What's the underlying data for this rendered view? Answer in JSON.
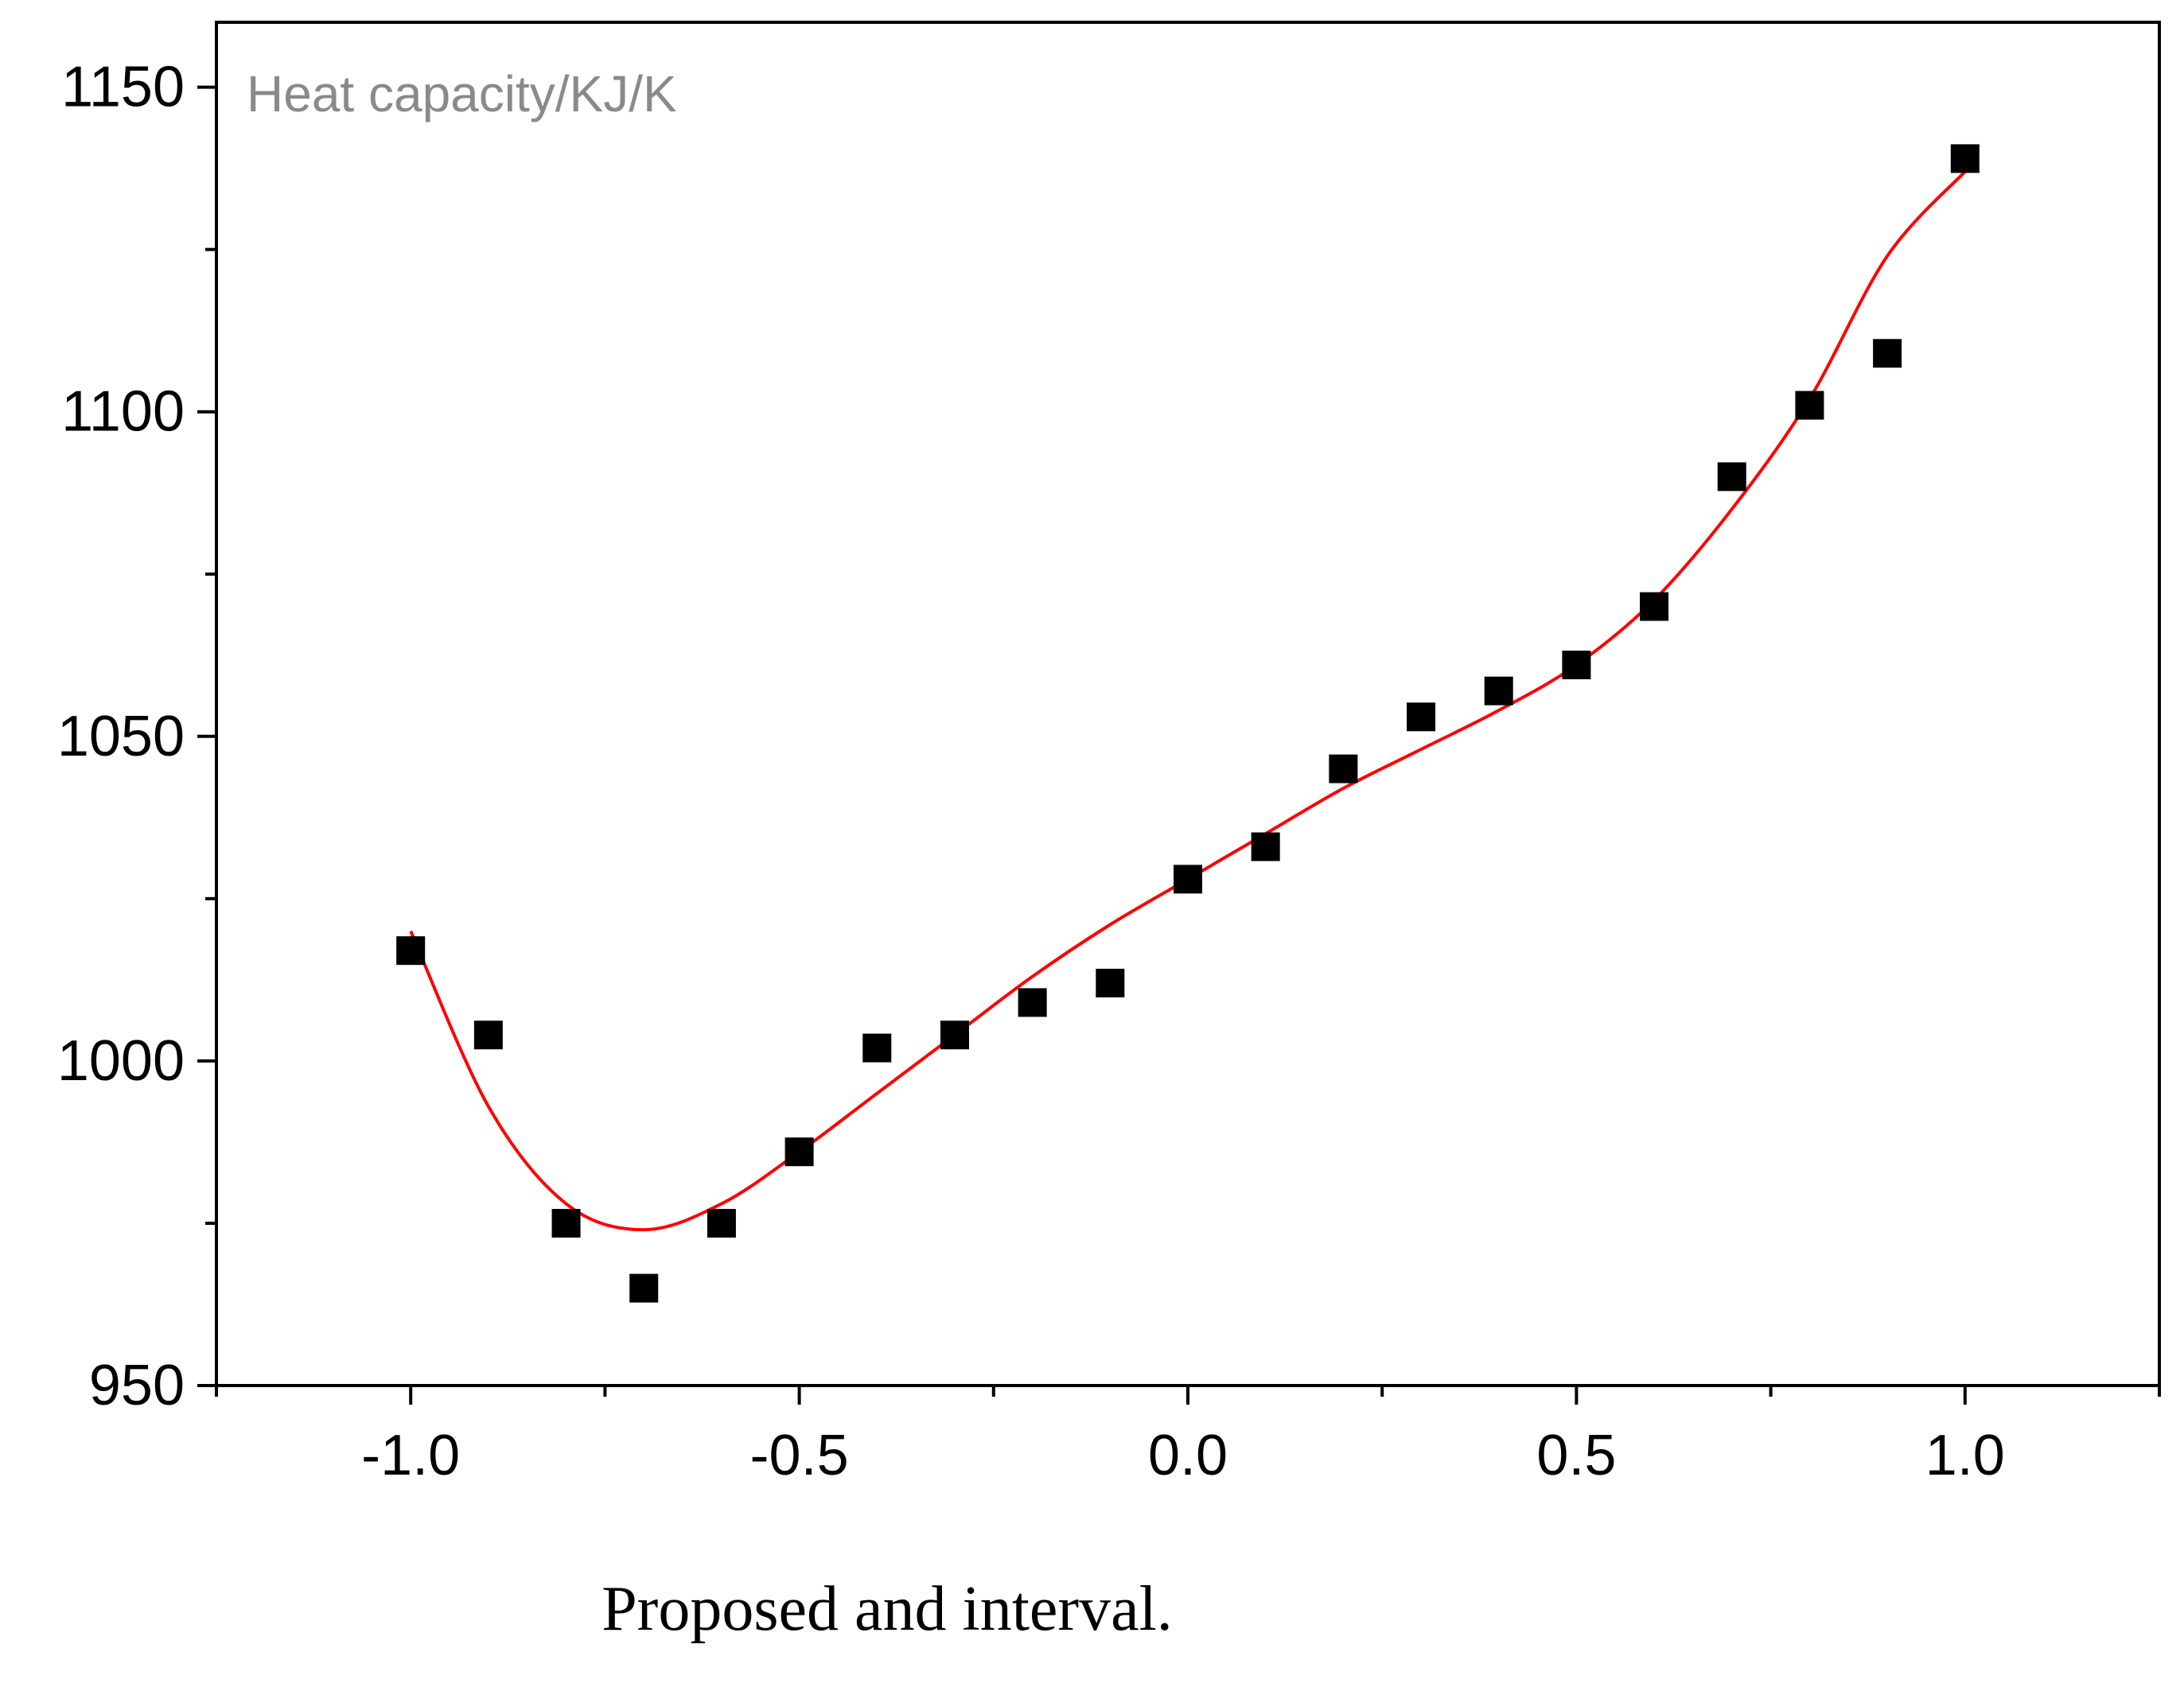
{
  "chart_data": {
    "type": "scatter",
    "title": "Heat capacity/KJ/K",
    "xlabel": "",
    "ylabel": "",
    "xlim": [
      -1.25,
      1.25
    ],
    "ylim": [
      950,
      1160
    ],
    "grid": false,
    "x_ticks": [
      -1.0,
      -0.5,
      0.0,
      0.5,
      1.0
    ],
    "x_tick_labels": [
      "-1.0",
      "-0.5",
      "0.0",
      "0.5",
      "1.0"
    ],
    "y_ticks": [
      950,
      1000,
      1050,
      1100,
      1150
    ],
    "y_tick_labels": [
      "950",
      "1000",
      "1050",
      "1100",
      "1150"
    ],
    "series": [
      {
        "name": "data",
        "marker": "square",
        "color": "#000000",
        "x": [
          -1.0,
          -0.9,
          -0.8,
          -0.7,
          -0.6,
          -0.5,
          -0.4,
          -0.3,
          -0.2,
          -0.1,
          0.0,
          0.1,
          0.2,
          0.3,
          0.4,
          0.5,
          0.6,
          0.7,
          0.8,
          0.9,
          1.0
        ],
        "y": [
          1017,
          1004,
          975,
          965,
          975,
          986,
          1002,
          1004,
          1009,
          1012,
          1028,
          1033,
          1045,
          1053,
          1057,
          1061,
          1070,
          1090,
          1101,
          1109,
          1139
        ]
      },
      {
        "name": "fit",
        "line": true,
        "color": "#ff0000",
        "x": [
          -1.0,
          -0.9,
          -0.8,
          -0.7,
          -0.6,
          -0.5,
          -0.4,
          -0.3,
          -0.2,
          -0.1,
          0.0,
          0.1,
          0.2,
          0.3,
          0.4,
          0.5,
          0.6,
          0.7,
          0.8,
          0.9,
          1.0
        ],
        "y": [
          1020,
          993,
          978,
          974,
          978,
          986,
          995,
          1004,
          1013,
          1021,
          1028,
          1035,
          1042,
          1048,
          1054,
          1061,
          1071,
          1085,
          1102,
          1124,
          1137
        ]
      }
    ]
  },
  "caption": "Proposed and interval."
}
